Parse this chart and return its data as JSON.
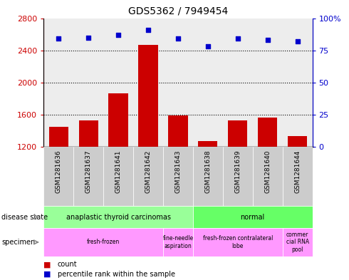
{
  "title": "GDS5362 / 7949454",
  "samples": [
    "GSM1281636",
    "GSM1281637",
    "GSM1281641",
    "GSM1281642",
    "GSM1281643",
    "GSM1281638",
    "GSM1281639",
    "GSM1281640",
    "GSM1281644"
  ],
  "counts": [
    1450,
    1530,
    1870,
    2470,
    1590,
    1270,
    1530,
    1570,
    1340
  ],
  "percentiles": [
    84,
    85,
    87,
    91,
    84,
    78,
    84,
    83,
    82
  ],
  "ylim_left": [
    1200,
    2800
  ],
  "ylim_right": [
    0,
    100
  ],
  "yticks_left": [
    1200,
    1600,
    2000,
    2400,
    2800
  ],
  "yticks_right": [
    0,
    25,
    50,
    75,
    100
  ],
  "bar_color": "#cc0000",
  "dot_color": "#0000cc",
  "bar_bottom": 1200,
  "disease_atc_color": "#99ff99",
  "disease_normal_color": "#66ff66",
  "specimen_color": "#ff99ff",
  "specimen_groups": [
    {
      "label": "fresh-frozen",
      "start": 0,
      "end": 4
    },
    {
      "label": "fine-needle\naspiration",
      "start": 4,
      "end": 5
    },
    {
      "label": "fresh-frozen contralateral\nlobe",
      "start": 5,
      "end": 8
    },
    {
      "label": "commer\ncial RNA\npool",
      "start": 8,
      "end": 9
    }
  ],
  "legend_count_color": "#cc0000",
  "legend_dot_color": "#0000cc",
  "left_label_color": "#cc0000",
  "right_label_color": "#0000cc",
  "col_bg_color": "#cccccc",
  "plot_bg_color": "#ffffff"
}
